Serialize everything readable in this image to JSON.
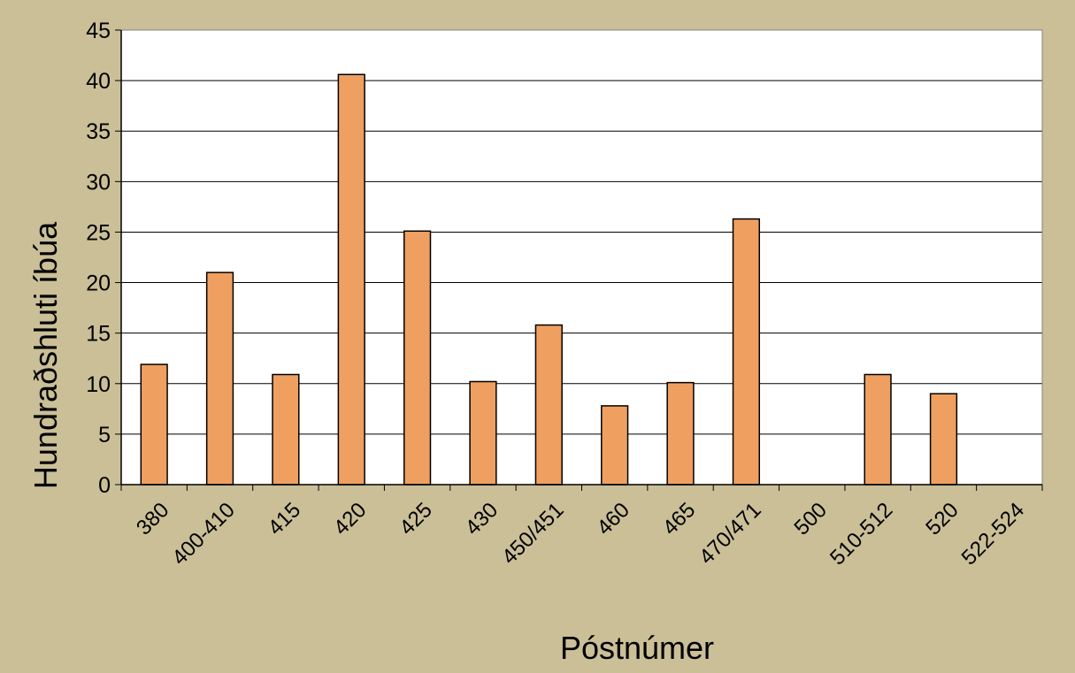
{
  "chart_data": {
    "type": "bar",
    "categories": [
      "380",
      "400-410",
      "415",
      "420",
      "425",
      "430",
      "450/451",
      "460",
      "465",
      "470/471",
      "500",
      "510-512",
      "520",
      "522-524"
    ],
    "values": [
      11.9,
      21.0,
      10.9,
      40.6,
      25.1,
      10.2,
      15.8,
      7.8,
      10.1,
      26.3,
      0,
      10.9,
      9.0,
      0
    ],
    "title": "",
    "xlabel": "Póstnúmer",
    "ylabel": "Hundraðshluti íbúa",
    "ylim": [
      0,
      45
    ],
    "yticks": [
      "0",
      "5",
      "10",
      "15",
      "20",
      "25",
      "30",
      "35",
      "40",
      "45"
    ],
    "grid": true,
    "legend": "none",
    "colors": {
      "background": "#cbbf98",
      "plot_area": "#ffffff",
      "bar_fill": "#efa060",
      "bar_stroke": "#000000",
      "gridline": "#000000"
    }
  }
}
